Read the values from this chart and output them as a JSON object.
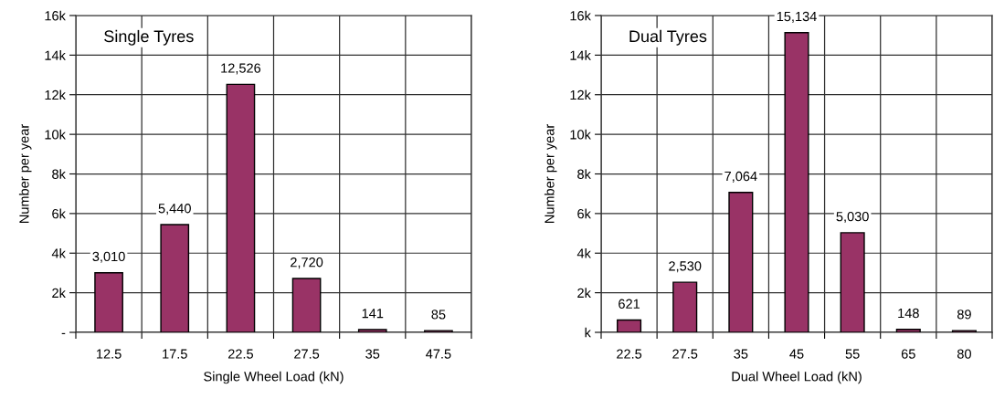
{
  "chart_data": [
    {
      "type": "bar",
      "title": "Single Tyres",
      "xlabel": "Single Wheel Load (kN)",
      "ylabel": "Number per year",
      "categories": [
        "12.5",
        "17.5",
        "22.5",
        "27.5",
        "35",
        "47.5"
      ],
      "values": [
        3010,
        5440,
        12526,
        2720,
        141,
        85
      ],
      "value_labels": [
        "3,010",
        "5,440",
        "12,526",
        "2,720",
        "141",
        "85"
      ],
      "color": "#993366",
      "ylim": [
        0,
        16000
      ],
      "yticks": [
        {
          "value": 0,
          "label": "-"
        },
        {
          "value": 2000,
          "label": "2k"
        },
        {
          "value": 4000,
          "label": "4k"
        },
        {
          "value": 6000,
          "label": "6k"
        },
        {
          "value": 8000,
          "label": "8k"
        },
        {
          "value": 10000,
          "label": "10k"
        },
        {
          "value": 12000,
          "label": "12k"
        },
        {
          "value": 14000,
          "label": "14k"
        },
        {
          "value": 16000,
          "label": "16k"
        }
      ],
      "grid": true
    },
    {
      "type": "bar",
      "title": "Dual Tyres",
      "xlabel": "Dual Wheel Load (kN)",
      "ylabel": "Number per year",
      "categories": [
        "22.5",
        "27.5",
        "35",
        "45",
        "55",
        "65",
        "80"
      ],
      "values": [
        621,
        2530,
        7064,
        15134,
        5030,
        148,
        89
      ],
      "value_labels": [
        "621",
        "2,530",
        "7,064",
        "15,134",
        "5,030",
        "148",
        "89"
      ],
      "color": "#993366",
      "ylim": [
        0,
        16000
      ],
      "yticks": [
        {
          "value": 0,
          "label": "k"
        },
        {
          "value": 2000,
          "label": "2k"
        },
        {
          "value": 4000,
          "label": "4k"
        },
        {
          "value": 6000,
          "label": "6k"
        },
        {
          "value": 8000,
          "label": "8k"
        },
        {
          "value": 10000,
          "label": "10k"
        },
        {
          "value": 12000,
          "label": "12k"
        },
        {
          "value": 14000,
          "label": "14k"
        },
        {
          "value": 16000,
          "label": "16k"
        }
      ],
      "grid": true
    }
  ]
}
